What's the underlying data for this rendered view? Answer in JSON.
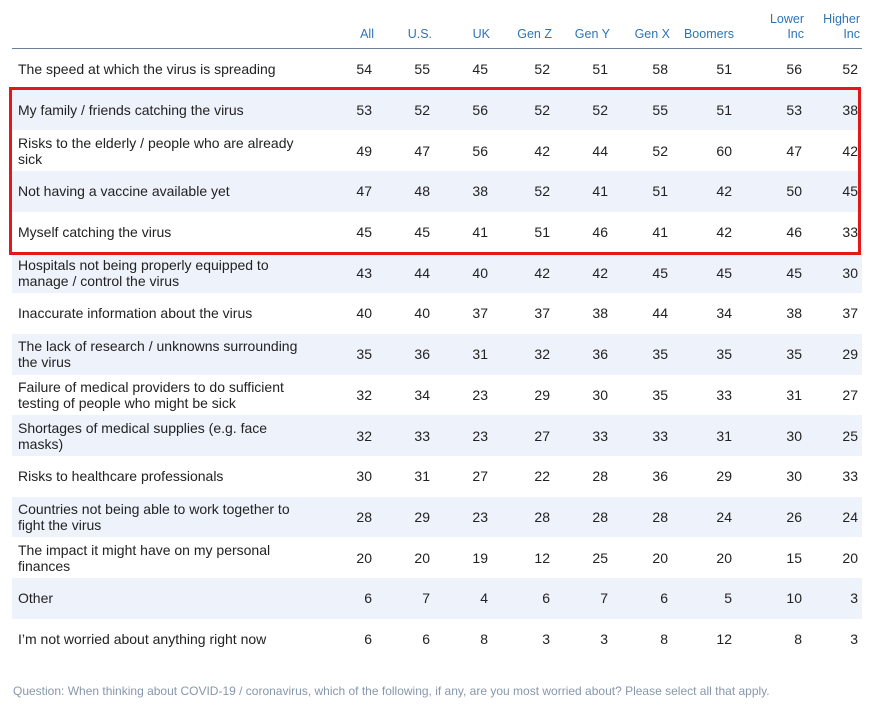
{
  "chart_data": {
    "type": "table",
    "columns": [
      "All",
      "U.S.",
      "UK",
      "Gen Z",
      "Gen Y",
      "Gen X",
      "Boomers",
      "Lower Inc",
      "Higher Inc"
    ],
    "rows": [
      {
        "label": "The speed at which the virus is spreading",
        "values": [
          54,
          55,
          45,
          52,
          51,
          58,
          51,
          56,
          52
        ]
      },
      {
        "label": "My family / friends catching the virus",
        "values": [
          53,
          52,
          56,
          52,
          52,
          55,
          51,
          53,
          38
        ]
      },
      {
        "label": "Risks to the elderly / people who are already sick",
        "values": [
          49,
          47,
          56,
          42,
          44,
          52,
          60,
          47,
          42
        ]
      },
      {
        "label": "Not having a vaccine available yet",
        "values": [
          47,
          48,
          38,
          52,
          41,
          51,
          42,
          50,
          45
        ]
      },
      {
        "label": "Myself catching the virus",
        "values": [
          45,
          45,
          41,
          51,
          46,
          41,
          42,
          46,
          33
        ]
      },
      {
        "label": "Hospitals not being properly equipped to manage / control the virus",
        "values": [
          43,
          44,
          40,
          42,
          42,
          45,
          45,
          45,
          30
        ]
      },
      {
        "label": "Inaccurate information about the virus",
        "values": [
          40,
          40,
          37,
          37,
          38,
          44,
          34,
          38,
          37
        ]
      },
      {
        "label": "The lack of research / unknowns surrounding the virus",
        "values": [
          35,
          36,
          31,
          32,
          36,
          35,
          35,
          35,
          29
        ]
      },
      {
        "label": "Failure of medical providers to do sufficient testing of people who might be sick",
        "values": [
          32,
          34,
          23,
          29,
          30,
          35,
          33,
          31,
          27
        ]
      },
      {
        "label": "Shortages of medical supplies (e.g. face masks)",
        "values": [
          32,
          33,
          23,
          27,
          33,
          33,
          31,
          30,
          25
        ]
      },
      {
        "label": "Risks to healthcare professionals",
        "values": [
          30,
          31,
          27,
          22,
          28,
          36,
          29,
          30,
          33
        ]
      },
      {
        "label": "Countries not being able to work together to fight the virus",
        "values": [
          28,
          29,
          23,
          28,
          28,
          28,
          24,
          26,
          24
        ]
      },
      {
        "label": "The impact it might have on my personal finances",
        "values": [
          20,
          20,
          19,
          12,
          25,
          20,
          20,
          15,
          20
        ]
      },
      {
        "label": "Other",
        "values": [
          6,
          7,
          4,
          6,
          7,
          6,
          5,
          10,
          3
        ]
      },
      {
        "label": "I’m not worried about anything right now",
        "values": [
          6,
          6,
          8,
          3,
          3,
          8,
          12,
          8,
          3
        ]
      }
    ],
    "highlighted_rows": [
      "My family / friends catching the virus",
      "Risks to the elderly / people who are already sick",
      "Not having a vaccine available yet",
      "Myself catching the virus"
    ],
    "colors": {
      "header_text": "#2e74b5",
      "row_shade": "#eef2fb",
      "highlight_border": "#e31818"
    }
  },
  "question": "Question: When thinking about COVID-19 / coronavirus, which of the following, if any, are you most worried about? Please select all that apply."
}
